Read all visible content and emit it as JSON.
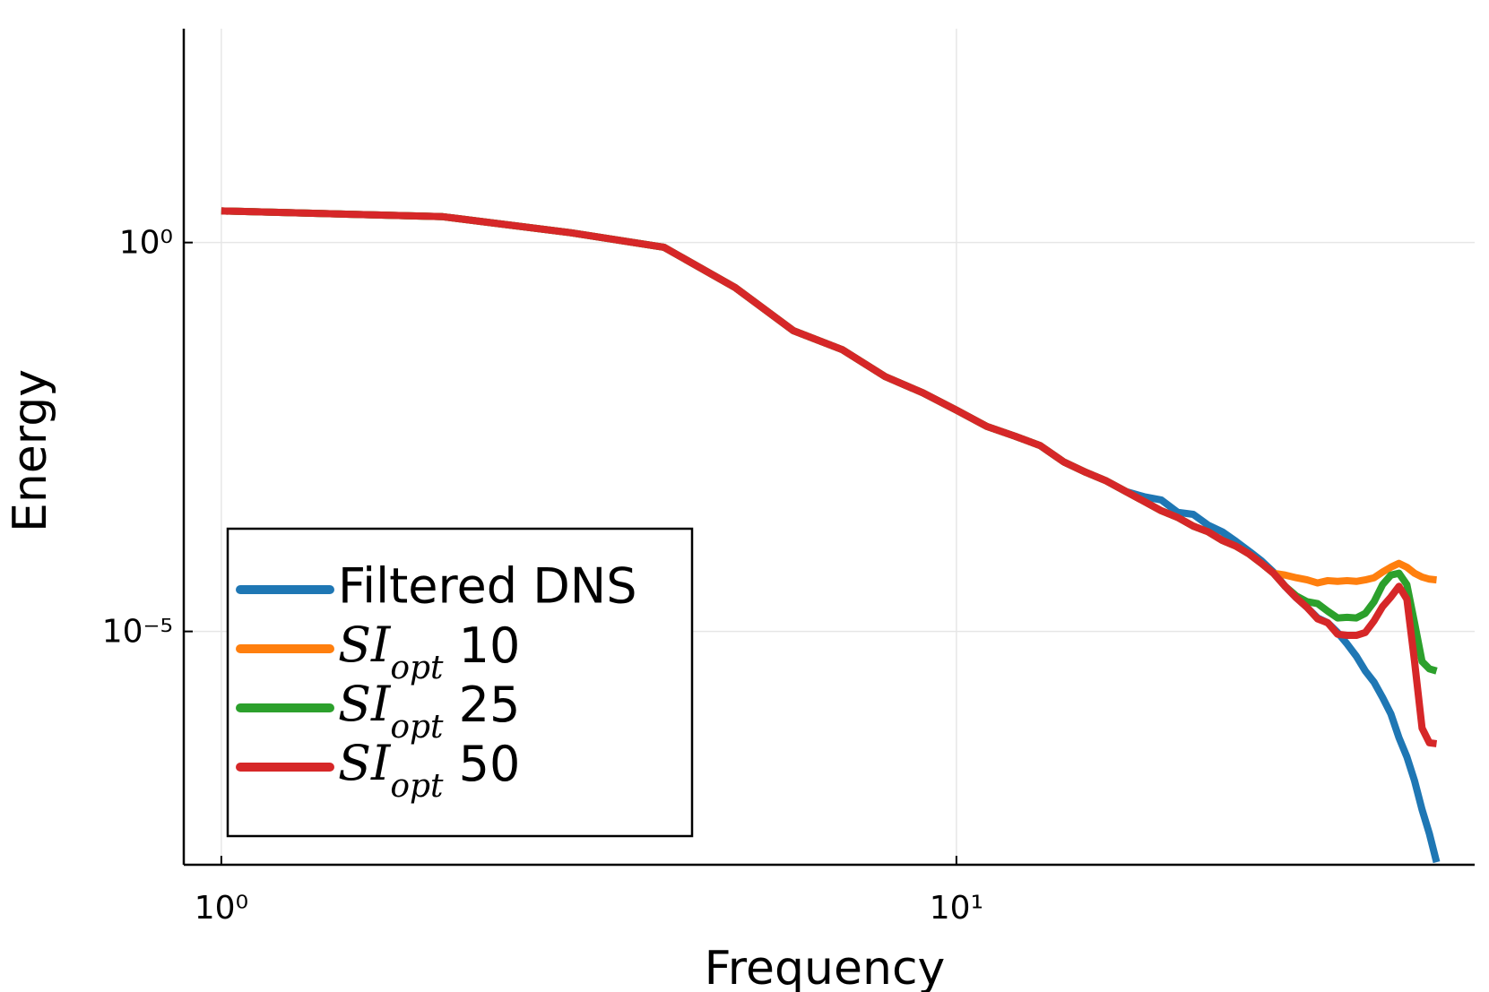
{
  "chart_data": {
    "type": "line",
    "x_label": "Frequency",
    "y_label": "Energy",
    "x_log": true,
    "y_log": true,
    "grid": true,
    "legend": "lower-left",
    "xlim": [
      0.889,
      50.7
    ],
    "ylim": [
      1e-08,
      562
    ],
    "xticks": [
      {
        "value": 1,
        "label": "10⁰"
      },
      {
        "value": 10,
        "label": "10¹"
      }
    ],
    "yticks": [
      {
        "value": 1,
        "label": "10⁰"
      },
      {
        "value": 1e-05,
        "label": "10⁻⁵"
      }
    ],
    "x": [
      1,
      2,
      3,
      4,
      5,
      6,
      7,
      8,
      9,
      10,
      11,
      12,
      13,
      14,
      15,
      16,
      17,
      18,
      19,
      20,
      21,
      22,
      23,
      24,
      25,
      26,
      27,
      28,
      29,
      30,
      31,
      32,
      33,
      34,
      35,
      36,
      37,
      38,
      39,
      40,
      41,
      42,
      43,
      44,
      45
    ],
    "series": [
      {
        "name": "Filtered DNS",
        "color": "#1f77b4",
        "values": [
          2.55,
          2.15,
          1.33,
          0.87,
          0.264,
          0.0736,
          0.0418,
          0.0189,
          0.0117,
          0.007,
          0.00432,
          0.00325,
          0.00245,
          0.00151,
          0.00111,
          0.00086,
          0.00063,
          0.00054,
          0.00049,
          0.00034,
          0.00032,
          0.000233,
          0.000191,
          0.000144,
          0.000108,
          8.1e-05,
          5.8e-05,
          3.8e-05,
          2.7e-05,
          2.03e-05,
          1.49e-05,
          1.29e-05,
          9.7e-06,
          6.9e-06,
          4.8e-06,
          3.1e-06,
          2.22e-06,
          1.41e-06,
          8.7e-07,
          4.3e-07,
          2.44e-07,
          1.2e-07,
          5.1e-08,
          2.5e-08,
          1.08e-08
        ]
      },
      {
        "name": "SI_opt 10",
        "color": "#ff7f0e",
        "values": [
          2.55,
          2.15,
          1.33,
          0.87,
          0.264,
          0.0736,
          0.0418,
          0.0189,
          0.0117,
          0.007,
          0.00432,
          0.00325,
          0.00245,
          0.00151,
          0.00111,
          0.00086,
          0.00063,
          0.00047,
          0.000356,
          0.000292,
          0.000226,
          0.000191,
          0.000148,
          0.000125,
          9.95e-05,
          7.5e-05,
          5.6e-05,
          5.3e-05,
          4.9e-05,
          4.6e-05,
          4.2e-05,
          4.5e-05,
          4.4e-05,
          4.5e-05,
          4.4e-05,
          4.6e-05,
          4.9e-05,
          5.8e-05,
          6.7e-05,
          7.5e-05,
          6.7e-05,
          5.6e-05,
          5e-05,
          4.7e-05,
          4.6e-05
        ]
      },
      {
        "name": "SI_opt 25",
        "color": "#2ca02c",
        "values": [
          2.55,
          2.15,
          1.33,
          0.87,
          0.264,
          0.0736,
          0.0418,
          0.0189,
          0.0117,
          0.007,
          0.00432,
          0.00325,
          0.00245,
          0.00151,
          0.00111,
          0.00086,
          0.00063,
          0.00047,
          0.000356,
          0.000292,
          0.000226,
          0.000191,
          0.000148,
          0.000125,
          9.95e-05,
          7.5e-05,
          5.6e-05,
          3.8e-05,
          2.86e-05,
          2.41e-05,
          2.28e-05,
          1.82e-05,
          1.49e-05,
          1.52e-05,
          1.49e-05,
          1.71e-05,
          2.41e-05,
          4e-05,
          5.3e-05,
          5.6e-05,
          4e-05,
          1.29e-05,
          4.1e-06,
          3.3e-06,
          3.1e-06
        ]
      },
      {
        "name": "SI_opt 50",
        "color": "#d62728",
        "values": [
          2.55,
          2.15,
          1.33,
          0.87,
          0.264,
          0.0736,
          0.0418,
          0.0189,
          0.0117,
          0.007,
          0.00432,
          0.00325,
          0.00245,
          0.00151,
          0.00111,
          0.00086,
          0.00063,
          0.00047,
          0.000356,
          0.000292,
          0.000226,
          0.000191,
          0.000148,
          0.000125,
          9.95e-05,
          7.5e-05,
          5.6e-05,
          3.8e-05,
          2.7e-05,
          2.03e-05,
          1.45e-05,
          1.29e-05,
          9.2e-06,
          8.9e-06,
          8.9e-06,
          9.7e-06,
          1.37e-05,
          2.09e-05,
          2.77e-05,
          3.8e-05,
          2.6e-05,
          4.1e-06,
          5.7e-07,
          3.7e-07,
          3.6e-07
        ]
      }
    ]
  }
}
